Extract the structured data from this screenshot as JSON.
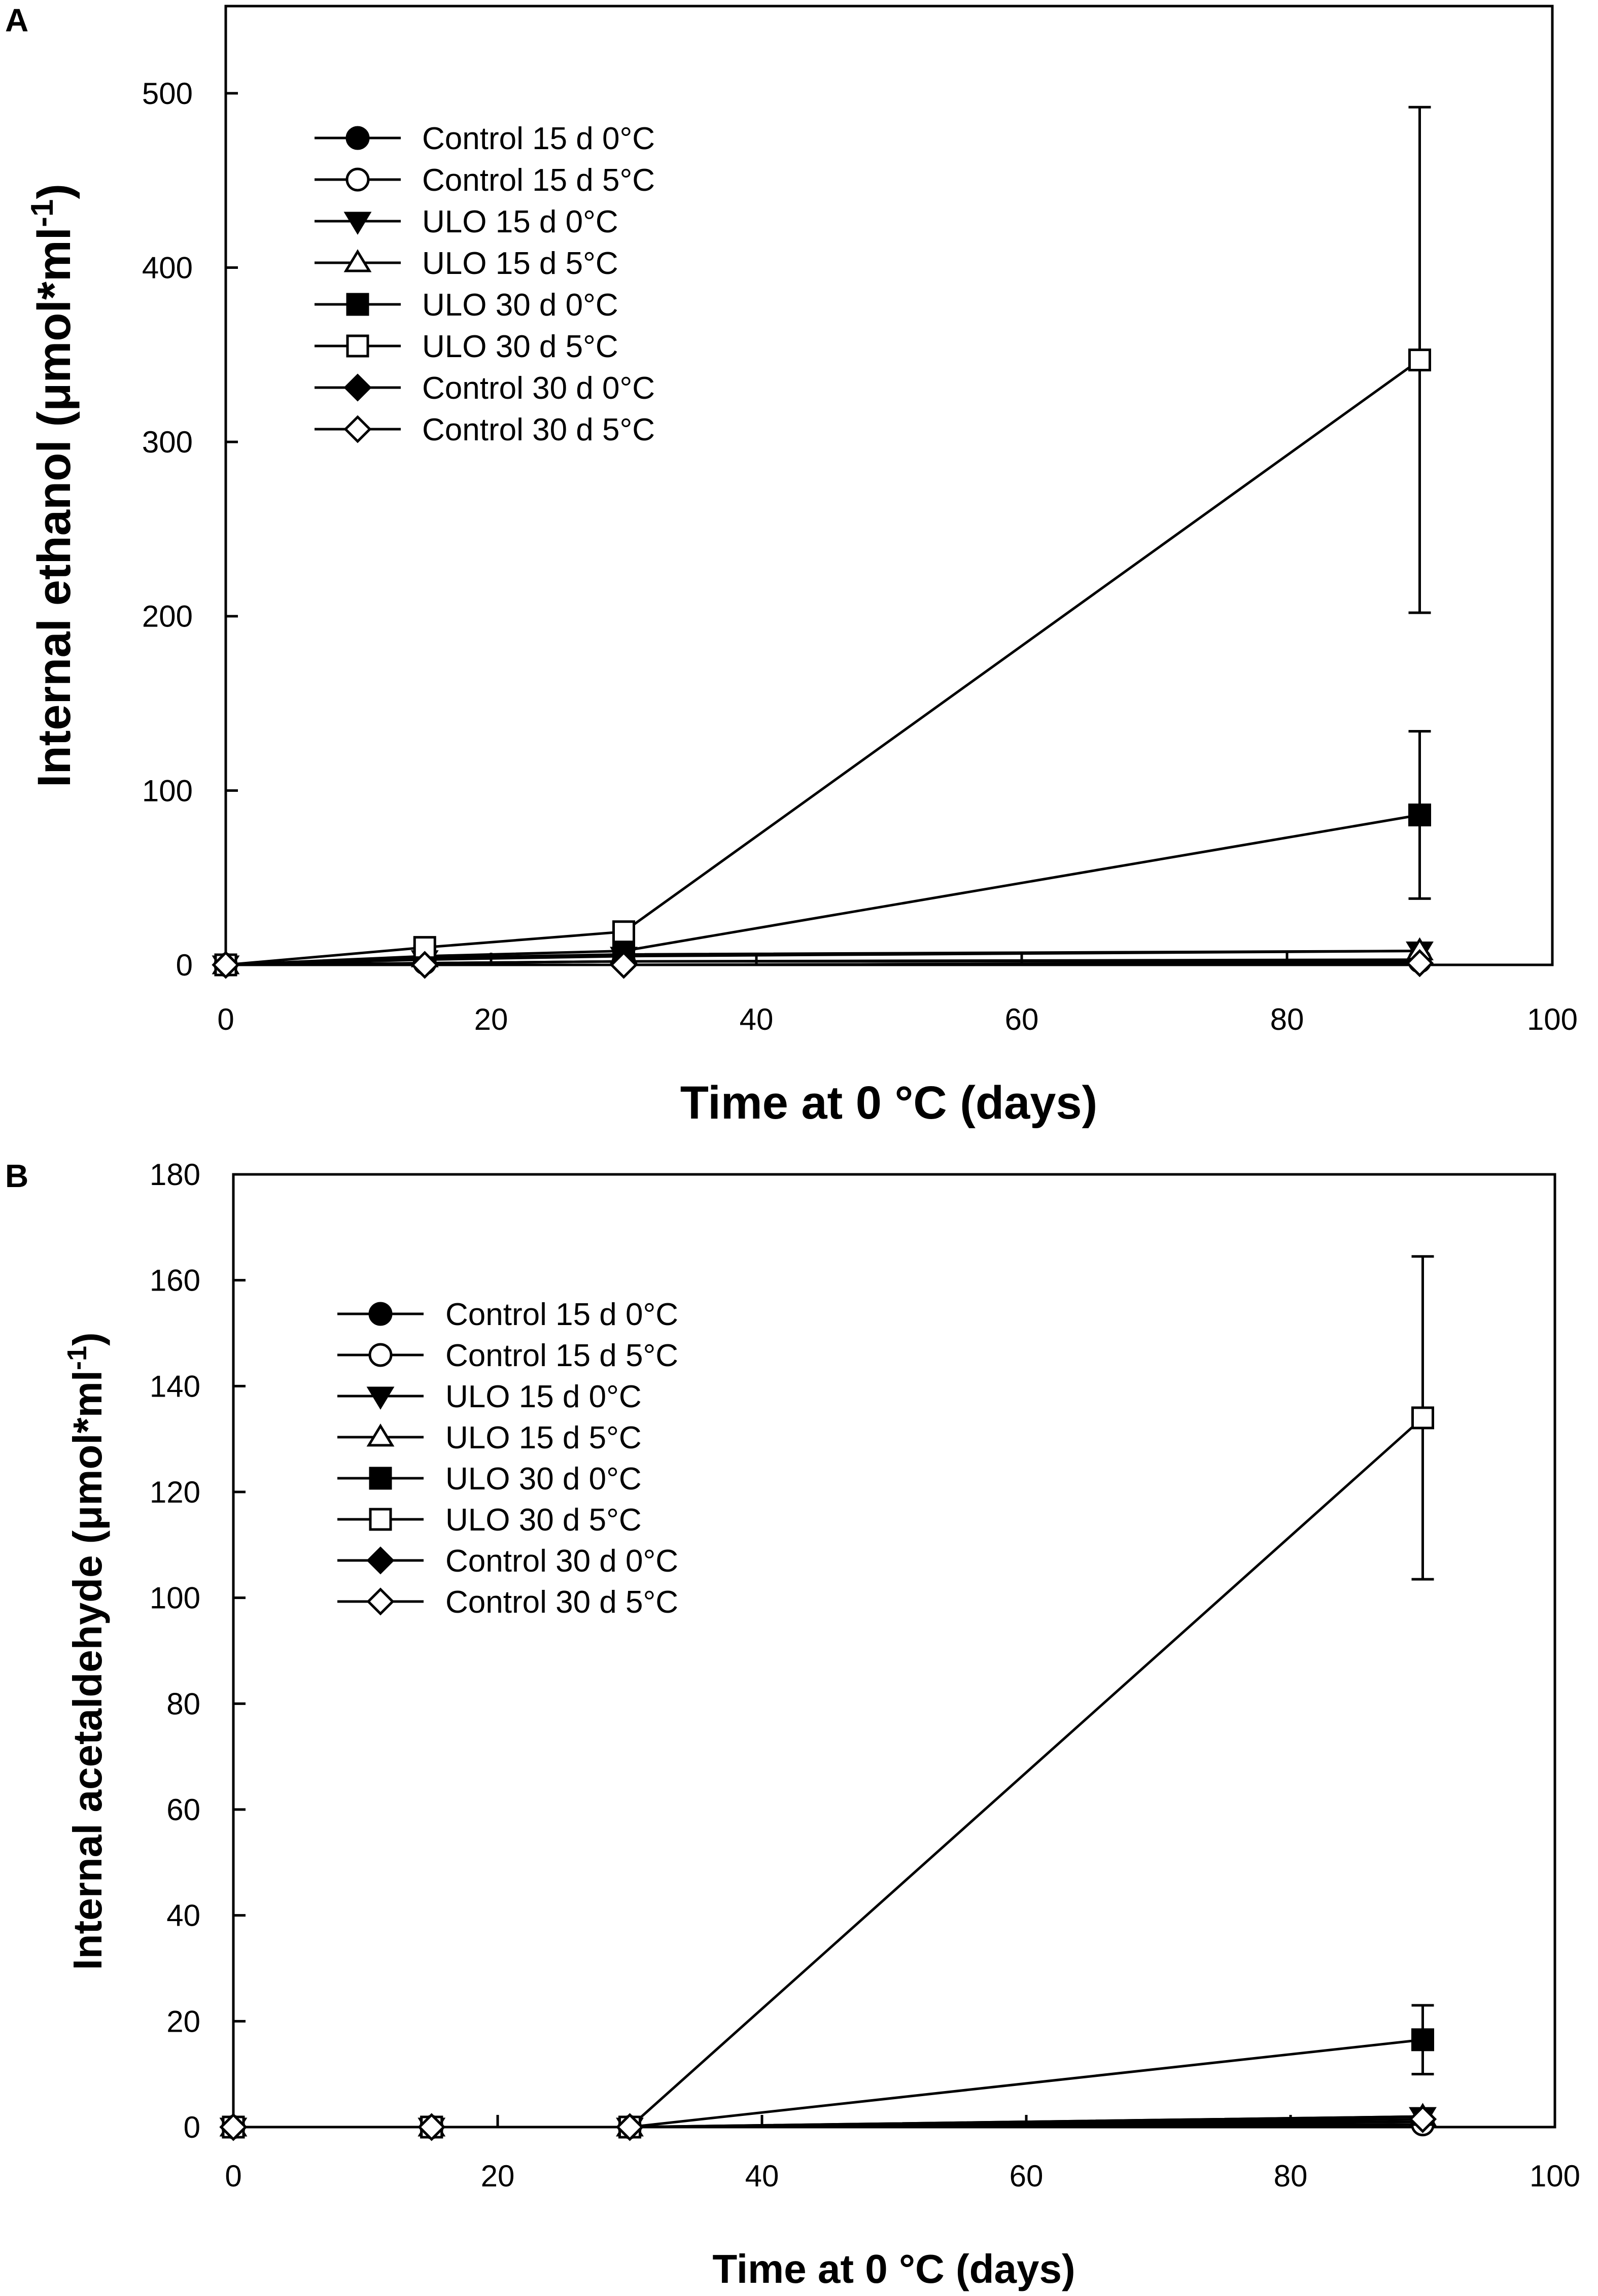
{
  "chart_data": [
    {
      "panel": "A",
      "type": "line",
      "xlabel": "Time at 0 °C (days)",
      "ylabel": "Internal ethanol (μmol*ml",
      "ylabel_superscript": "-1",
      "ylabel_close": ")",
      "xlim": [
        0,
        100
      ],
      "ylim": [
        0,
        550
      ],
      "xticks": [
        0,
        20,
        40,
        60,
        80,
        100
      ],
      "yticks": [
        0,
        100,
        200,
        300,
        400,
        500
      ],
      "legend_position": "top-left",
      "series": [
        {
          "name": "Control 15 d 0°C",
          "marker": "circle",
          "fill": "#000000",
          "x": [
            0,
            15,
            30,
            90
          ],
          "y": [
            0,
            1,
            2,
            3
          ]
        },
        {
          "name": "Control 15 d 5°C",
          "marker": "circle",
          "fill": "#ffffff",
          "x": [
            0,
            15,
            30,
            90
          ],
          "y": [
            0,
            1,
            2,
            2
          ]
        },
        {
          "name": "ULO 15 d 0°C",
          "marker": "triangle-down",
          "fill": "#000000",
          "x": [
            0,
            15,
            30,
            90
          ],
          "y": [
            0,
            3,
            5,
            8
          ]
        },
        {
          "name": "ULO 15 d 5°C",
          "marker": "triangle-up",
          "fill": "#ffffff",
          "x": [
            0,
            15,
            30,
            90
          ],
          "y": [
            0,
            4,
            6,
            8
          ]
        },
        {
          "name": "ULO 30 d 0°C",
          "marker": "square",
          "fill": "#000000",
          "x": [
            0,
            15,
            30,
            90
          ],
          "y": [
            0,
            5,
            8,
            86
          ],
          "err": [
            0,
            1,
            2,
            48
          ]
        },
        {
          "name": "ULO 30 d 5°C",
          "marker": "square",
          "fill": "#ffffff",
          "x": [
            0,
            15,
            30,
            90
          ],
          "y": [
            0,
            10,
            19,
            347
          ],
          "err": [
            0,
            2,
            4,
            145
          ]
        },
        {
          "name": "Control 30 d 0°C",
          "marker": "diamond",
          "fill": "#000000",
          "x": [
            0,
            15,
            30,
            90
          ],
          "y": [
            0,
            0,
            0,
            1
          ]
        },
        {
          "name": "Control 30 d 5°C",
          "marker": "diamond",
          "fill": "#ffffff",
          "x": [
            0,
            15,
            30,
            90
          ],
          "y": [
            0,
            0,
            0,
            1
          ]
        }
      ]
    },
    {
      "panel": "B",
      "type": "line",
      "xlabel": "Time at 0 °C (days)",
      "ylabel": "Internal acetaldehyde (μmol*ml",
      "ylabel_superscript": "-1",
      "ylabel_close": ")",
      "xlim": [
        0,
        100
      ],
      "ylim": [
        0,
        180
      ],
      "xticks": [
        0,
        20,
        40,
        60,
        80,
        100
      ],
      "yticks": [
        0,
        20,
        40,
        60,
        80,
        100,
        120,
        140,
        160,
        180
      ],
      "legend_position": "top-left",
      "series": [
        {
          "name": "Control 15 d 0°C",
          "marker": "circle",
          "fill": "#000000",
          "x": [
            0,
            15,
            30,
            90
          ],
          "y": [
            0,
            0,
            0,
            1
          ]
        },
        {
          "name": "Control 15 d 5°C",
          "marker": "circle",
          "fill": "#ffffff",
          "x": [
            0,
            15,
            30,
            90
          ],
          "y": [
            0,
            0,
            0,
            0.5
          ]
        },
        {
          "name": "ULO 15 d 0°C",
          "marker": "triangle-down",
          "fill": "#000000",
          "x": [
            0,
            15,
            30,
            90
          ],
          "y": [
            0,
            0,
            0,
            2
          ]
        },
        {
          "name": "ULO 15 d 5°C",
          "marker": "triangle-up",
          "fill": "#ffffff",
          "x": [
            0,
            15,
            30,
            90
          ],
          "y": [
            0,
            0,
            0,
            2
          ]
        },
        {
          "name": "ULO 30 d 0°C",
          "marker": "square",
          "fill": "#000000",
          "x": [
            0,
            15,
            30,
            90
          ],
          "y": [
            0,
            0,
            0,
            16.5
          ],
          "err": [
            0,
            0,
            0,
            6.5
          ]
        },
        {
          "name": "ULO 30 d 5°C",
          "marker": "square",
          "fill": "#ffffff",
          "x": [
            0,
            15,
            30,
            90
          ],
          "y": [
            0,
            0,
            0,
            134
          ],
          "err": [
            0,
            0,
            0,
            30.5
          ]
        },
        {
          "name": "Control 30 d 0°C",
          "marker": "diamond",
          "fill": "#000000",
          "x": [
            0,
            15,
            30,
            90
          ],
          "y": [
            0,
            0,
            0,
            1.5
          ]
        },
        {
          "name": "Control 30 d 5°C",
          "marker": "diamond",
          "fill": "#ffffff",
          "x": [
            0,
            15,
            30,
            90
          ],
          "y": [
            0,
            0,
            0,
            1.5
          ]
        }
      ]
    }
  ]
}
